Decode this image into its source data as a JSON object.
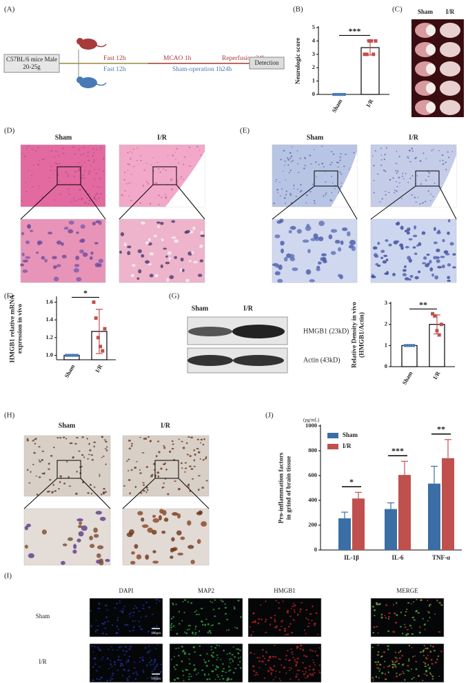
{
  "panel_labels": [
    "(A)",
    "(B)",
    "(C)",
    "(D)",
    "(E)",
    "(F)",
    "(G)",
    "(H)",
    "(J)",
    "(I)"
  ],
  "diagram": {
    "subject": [
      "C57BL/6 mice Male",
      "20-25g"
    ],
    "ir_steps": [
      "Fast 12h",
      "MCAO 1h",
      "Reperfusion 24h"
    ],
    "sham_steps": [
      "Fast 12h",
      "Sham-operation  1h",
      "24h"
    ],
    "end": "Detection"
  },
  "panel_c": {
    "columns": [
      "Sham",
      "I/R"
    ]
  },
  "panel_d": {
    "columns": [
      "Sham",
      "I/R"
    ]
  },
  "panel_e": {
    "columns": [
      "Sham",
      "I/R"
    ]
  },
  "panel_g": {
    "columns": [
      "Sham",
      "I/R"
    ],
    "bands": [
      "HMGB1 (23kD)",
      "Actin (43kD)"
    ]
  },
  "panel_h": {
    "columns": [
      "Sham",
      "I/R"
    ]
  },
  "panel_i": {
    "columns": [
      "DAPI",
      "MAP2",
      "HMGB1",
      "MERGE"
    ],
    "rows": [
      "Sham",
      "I/R"
    ],
    "scale": "100μm"
  },
  "chart_data": [
    {
      "type": "bar",
      "ylabel": [
        "Neurologic score"
      ],
      "categories": [
        "Sham",
        "I/R"
      ],
      "values": [
        0,
        3.5
      ],
      "errors": [
        0,
        0.55
      ],
      "points": [
        [
          0,
          0,
          0,
          0,
          0,
          0
        ],
        [
          3,
          3,
          4,
          4,
          3,
          4
        ]
      ],
      "point_colors": [
        "#4a7ab5",
        "#c0504d"
      ],
      "bar_color": "#ffffff",
      "ylim": [
        0,
        5
      ],
      "yticks": [
        0,
        1,
        2,
        3,
        4,
        5
      ],
      "annotation": "***"
    },
    {
      "type": "bar",
      "ylabel": [
        "HMGB1 relative mRNA",
        "expression in vivo"
      ],
      "categories": [
        "Sham",
        "I/R"
      ],
      "values": [
        1.0,
        1.27
      ],
      "errors": [
        0,
        0.25
      ],
      "points": [
        [
          1,
          1,
          1,
          1,
          1,
          1
        ],
        [
          1.6,
          1.42,
          1.2,
          1.1,
          1.05,
          1.3
        ]
      ],
      "point_colors": [
        "#4a7ab5",
        "#c0504d"
      ],
      "bar_color": "#ffffff",
      "ylim": [
        0.95,
        1.65
      ],
      "yticks": [
        {
          "value": 1,
          "label": "1.0"
        },
        {
          "value": 1.2,
          "label": "1.2"
        },
        {
          "value": 1.4,
          "label": "1.4"
        },
        {
          "value": 1.6,
          "label": "1.6"
        }
      ],
      "annotation": "*"
    },
    {
      "type": "bar",
      "ylabel": [
        "Relative Density in vivo",
        "(HMGB1/Actin)"
      ],
      "categories": [
        "Sham",
        "I/R"
      ],
      "values": [
        1.0,
        2.0
      ],
      "errors": [
        0,
        0.45
      ],
      "points": [
        [
          1,
          1,
          1,
          1,
          1
        ],
        [
          2.5,
          2.4,
          1.7,
          1.5,
          2.0
        ]
      ],
      "point_colors": [
        "#4a7ab5",
        "#c0504d"
      ],
      "bar_color": "#ffffff",
      "ylim": [
        0,
        3
      ],
      "yticks": [
        0,
        1,
        2,
        3
      ],
      "annotation": "**"
    },
    {
      "type": "grouped_bar",
      "ylabel": [
        "Pro-inflammation factors",
        "in grind of brain tissue"
      ],
      "unit": "(pg/mL)",
      "categories": [
        "IL-1β",
        "IL-6",
        "TNF-α"
      ],
      "series": [
        {
          "name": "Sham",
          "color": "#3a6ea5",
          "values": [
            255,
            330,
            535
          ],
          "errors": [
            50,
            50,
            140
          ]
        },
        {
          "name": "I/R",
          "color": "#c0504d",
          "values": [
            415,
            605,
            740
          ],
          "errors": [
            50,
            110,
            150
          ]
        }
      ],
      "ylim": [
        0,
        1000
      ],
      "yticks": [
        0,
        200,
        400,
        600,
        800,
        1000
      ],
      "annotations": [
        "*",
        "***",
        "**"
      ]
    }
  ]
}
